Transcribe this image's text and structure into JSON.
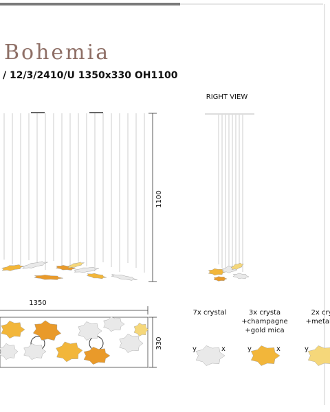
{
  "header": {
    "brand": "Bohemia",
    "title": "/ 12/3/2410/U 1350x330 OH1100"
  },
  "views": {
    "right_view": "RIGHT VIEW"
  },
  "dimensions": {
    "height": 1100,
    "width": 1350,
    "depth": 330
  },
  "variants": [
    {
      "lines": [
        "7x crystal"
      ],
      "axis_labels": [
        "y",
        "x"
      ]
    },
    {
      "lines": [
        "3x crysta",
        "+champagne",
        "+gold mica"
      ],
      "axis_labels": [
        "y",
        "x"
      ]
    },
    {
      "lines": [
        "2x cry",
        "+metal p"
      ],
      "axis_labels": [
        "y"
      ]
    }
  ]
}
